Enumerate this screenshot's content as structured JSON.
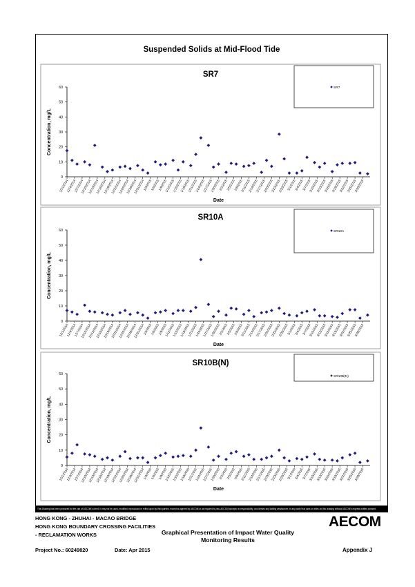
{
  "page": {
    "title": "Suspended Solids at Mid-Flood Tide",
    "disclaimer": "This Drawing has been prepared for the use of AECOM's client. It may not be used, modified, reproduced or relied upon by third parties, except as agreed by AECOM or as required by law. AECOM accepts no responsibility, and denies any liability whatsoever, to any party that uses or relies on this drawing without AECOM's express written consent.",
    "footer": {
      "line1": "HONG KONG - ZHUHAI - MACAO BRIDGE",
      "line2": "HONG KONG BOUNDARY CROSSING FACILITIES",
      "line3": "- RECLAMATION WORKS",
      "project": "Project No.: 60249820",
      "date": "Date: Apr 2015",
      "doc_title_1": "Graphical Presentation of Impact Water Quality",
      "doc_title_2": "Monitoring Results",
      "appendix": "Appendix J",
      "logo": "AECOM"
    }
  },
  "chart_data": [
    {
      "type": "scatter",
      "title": "SR7",
      "xlabel": "Date",
      "ylabel": "Concentration, mg/L",
      "ylim": [
        0,
        60
      ],
      "yticks": [
        0,
        10,
        20,
        30,
        40,
        50,
        60
      ],
      "xlim": [
        "2014-12-01",
        "2015-03-31"
      ],
      "xticks": [
        "12/1/2014",
        "12/4/2014",
        "12/7/2014",
        "12/10/2014",
        "12/13/2014",
        "12/16/2014",
        "12/19/2014",
        "12/22/2014",
        "12/25/2014",
        "12/28/2014",
        "12/31/2014",
        "1/3/2015",
        "1/6/2015",
        "1/9/2015",
        "1/12/2015",
        "1/15/2015",
        "1/18/2015",
        "1/21/2015",
        "1/24/2015",
        "1/27/2015",
        "1/30/2015",
        "2/2/2015",
        "2/5/2015",
        "2/8/2015",
        "2/11/2015",
        "2/14/2015",
        "2/17/2015",
        "2/20/2015",
        "2/23/2015",
        "2/26/2015",
        "3/1/2015",
        "3/4/2015",
        "3/7/2015",
        "3/10/2015",
        "3/13/2015",
        "3/16/2015",
        "3/19/2015",
        "3/22/2015",
        "3/25/2015",
        "3/28/2015"
      ],
      "legend": "top-right",
      "grid": false,
      "series": [
        {
          "name": "SR7",
          "color": "#1f1f7a",
          "points": [
            [
              "2014-12-01",
              17.5
            ],
            [
              "2014-12-03",
              11
            ],
            [
              "2014-12-05",
              8.5
            ],
            [
              "2014-12-08",
              10
            ],
            [
              "2014-12-10",
              8
            ],
            [
              "2014-12-12",
              21
            ],
            [
              "2014-12-15",
              6.5
            ],
            [
              "2014-12-17",
              3.5
            ],
            [
              "2014-12-19",
              4.5
            ],
            [
              "2014-12-22",
              6.5
            ],
            [
              "2014-12-24",
              7
            ],
            [
              "2014-12-26",
              5.5
            ],
            [
              "2014-12-29",
              7.5
            ],
            [
              "2014-12-31",
              4.5
            ],
            [
              "2015-01-02",
              2.5
            ],
            [
              "2015-01-05",
              10
            ],
            [
              "2015-01-07",
              8
            ],
            [
              "2015-01-09",
              8.5
            ],
            [
              "2015-01-12",
              11
            ],
            [
              "2015-01-14",
              4.5
            ],
            [
              "2015-01-16",
              10
            ],
            [
              "2015-01-19",
              7.5
            ],
            [
              "2015-01-21",
              15
            ],
            [
              "2015-01-23",
              26
            ],
            [
              "2015-01-26",
              21
            ],
            [
              "2015-01-28",
              6.5
            ],
            [
              "2015-01-30",
              8.5
            ],
            [
              "2015-02-02",
              3
            ],
            [
              "2015-02-04",
              9
            ],
            [
              "2015-02-06",
              8.5
            ],
            [
              "2015-02-09",
              7
            ],
            [
              "2015-02-11",
              7.5
            ],
            [
              "2015-02-13",
              9
            ],
            [
              "2015-02-16",
              3
            ],
            [
              "2015-02-18",
              11
            ],
            [
              "2015-02-20",
              7
            ],
            [
              "2015-02-23",
              28.5
            ],
            [
              "2015-02-25",
              12
            ],
            [
              "2015-02-27",
              2.5
            ],
            [
              "2015-03-02",
              2.5
            ],
            [
              "2015-03-04",
              4
            ],
            [
              "2015-03-06",
              13
            ],
            [
              "2015-03-09",
              9.5
            ],
            [
              "2015-03-11",
              6.5
            ],
            [
              "2015-03-13",
              9
            ],
            [
              "2015-03-16",
              3.5
            ],
            [
              "2015-03-18",
              8
            ],
            [
              "2015-03-20",
              9
            ],
            [
              "2015-03-23",
              9
            ],
            [
              "2015-03-25",
              9.5
            ],
            [
              "2015-03-27",
              2.5
            ],
            [
              "2015-03-30",
              2
            ]
          ]
        }
      ]
    },
    {
      "type": "scatter",
      "title": "SR10A",
      "xlabel": "Date",
      "ylabel": "Concentration, mg/L",
      "ylim": [
        0,
        60
      ],
      "yticks": [
        0,
        10,
        20,
        30,
        40,
        50,
        60
      ],
      "xlim": [
        "2014-12-01",
        "2015-03-31"
      ],
      "xticks": [
        "12/1/2014",
        "12/4/2014",
        "12/7/2014",
        "12/10/2014",
        "12/13/2014",
        "12/16/2014",
        "12/19/2014",
        "12/22/2014",
        "12/25/2014",
        "12/28/2014",
        "12/31/2014",
        "1/3/2015",
        "1/6/2015",
        "1/9/2015",
        "1/12/2015",
        "1/15/2015",
        "1/18/2015",
        "1/21/2015",
        "1/24/2015",
        "1/27/2015",
        "1/30/2015",
        "2/2/2015",
        "2/5/2015",
        "2/8/2015",
        "2/11/2015",
        "2/14/2015",
        "2/17/2015",
        "2/20/2015",
        "2/23/2015",
        "2/26/2015",
        "3/1/2015",
        "3/4/2015",
        "3/7/2015",
        "3/10/2015",
        "3/13/2015",
        "3/16/2015",
        "3/19/2015",
        "3/22/2015",
        "3/25/2015",
        "3/28/2015"
      ],
      "legend": "top-right",
      "grid": false,
      "series": [
        {
          "name": "SR10A",
          "color": "#1f1f7a",
          "points": [
            [
              "2014-12-01",
              7
            ],
            [
              "2014-12-03",
              6
            ],
            [
              "2014-12-05",
              4.5
            ],
            [
              "2014-12-08",
              10.5
            ],
            [
              "2014-12-10",
              6.5
            ],
            [
              "2014-12-12",
              6
            ],
            [
              "2014-12-15",
              5.5
            ],
            [
              "2014-12-17",
              4.5
            ],
            [
              "2014-12-19",
              4
            ],
            [
              "2014-12-22",
              5.5
            ],
            [
              "2014-12-24",
              7
            ],
            [
              "2014-12-26",
              4.5
            ],
            [
              "2014-12-29",
              5.5
            ],
            [
              "2014-12-31",
              4
            ],
            [
              "2015-01-02",
              2
            ],
            [
              "2015-01-05",
              5.5
            ],
            [
              "2015-01-07",
              6
            ],
            [
              "2015-01-09",
              7
            ],
            [
              "2015-01-12",
              5
            ],
            [
              "2015-01-14",
              7
            ],
            [
              "2015-01-16",
              7
            ],
            [
              "2015-01-19",
              6.5
            ],
            [
              "2015-01-21",
              9
            ],
            [
              "2015-01-23",
              40.5
            ],
            [
              "2015-01-26",
              11
            ],
            [
              "2015-01-28",
              3
            ],
            [
              "2015-01-30",
              6.5
            ],
            [
              "2015-02-02",
              4
            ],
            [
              "2015-02-04",
              8.5
            ],
            [
              "2015-02-06",
              8
            ],
            [
              "2015-02-09",
              4.5
            ],
            [
              "2015-02-11",
              7
            ],
            [
              "2015-02-13",
              3
            ],
            [
              "2015-02-16",
              5.5
            ],
            [
              "2015-02-18",
              6
            ],
            [
              "2015-02-20",
              7
            ],
            [
              "2015-02-23",
              8.5
            ],
            [
              "2015-02-25",
              5
            ],
            [
              "2015-02-27",
              4
            ],
            [
              "2015-03-02",
              3.5
            ],
            [
              "2015-03-04",
              5.5
            ],
            [
              "2015-03-06",
              6.5
            ],
            [
              "2015-03-09",
              7.5
            ],
            [
              "2015-03-11",
              3.5
            ],
            [
              "2015-03-13",
              3.5
            ],
            [
              "2015-03-16",
              3
            ],
            [
              "2015-03-18",
              2.5
            ],
            [
              "2015-03-20",
              5
            ],
            [
              "2015-03-23",
              7.5
            ],
            [
              "2015-03-25",
              7.5
            ],
            [
              "2015-03-27",
              2
            ],
            [
              "2015-03-30",
              4
            ]
          ]
        }
      ]
    },
    {
      "type": "scatter",
      "title": "SR10B(N)",
      "xlabel": "Date",
      "ylabel": "Concentration, mg/L",
      "ylim": [
        0,
        60
      ],
      "yticks": [
        0,
        10,
        20,
        30,
        40,
        50,
        60
      ],
      "xlim": [
        "2014-12-01",
        "2015-03-31"
      ],
      "xticks": [
        "12/1/2014",
        "12/4/2014",
        "12/7/2014",
        "12/10/2014",
        "12/13/2014",
        "12/16/2014",
        "12/19/2014",
        "12/22/2014",
        "12/25/2014",
        "12/28/2014",
        "12/31/2014",
        "1/3/2015",
        "1/6/2015",
        "1/9/2015",
        "1/12/2015",
        "1/15/2015",
        "1/18/2015",
        "1/21/2015",
        "1/24/2015",
        "1/27/2015",
        "1/30/2015",
        "2/2/2015",
        "2/5/2015",
        "2/8/2015",
        "2/11/2015",
        "2/14/2015",
        "2/17/2015",
        "2/20/2015",
        "2/23/2015",
        "2/26/2015",
        "3/1/2015",
        "3/4/2015",
        "3/7/2015",
        "3/10/2015",
        "3/13/2015",
        "3/16/2015",
        "3/19/2015",
        "3/22/2015",
        "3/25/2015",
        "3/28/2015"
      ],
      "legend": "top-right",
      "grid": false,
      "series": [
        {
          "name": "SR10B(N)",
          "color": "#1f1f7a",
          "points": [
            [
              "2014-12-01",
              5.5
            ],
            [
              "2014-12-03",
              8
            ],
            [
              "2014-12-05",
              13.5
            ],
            [
              "2014-12-08",
              7.5
            ],
            [
              "2014-12-10",
              7
            ],
            [
              "2014-12-12",
              6
            ],
            [
              "2014-12-15",
              4
            ],
            [
              "2014-12-17",
              5
            ],
            [
              "2014-12-19",
              3.5
            ],
            [
              "2014-12-22",
              6
            ],
            [
              "2014-12-24",
              9
            ],
            [
              "2014-12-26",
              4.5
            ],
            [
              "2014-12-29",
              5
            ],
            [
              "2014-12-31",
              5
            ],
            [
              "2015-01-02",
              2
            ],
            [
              "2015-01-05",
              5
            ],
            [
              "2015-01-07",
              6.5
            ],
            [
              "2015-01-09",
              8
            ],
            [
              "2015-01-12",
              5.5
            ],
            [
              "2015-01-14",
              6
            ],
            [
              "2015-01-16",
              6.5
            ],
            [
              "2015-01-19",
              6
            ],
            [
              "2015-01-21",
              10
            ],
            [
              "2015-01-23",
              24.5
            ],
            [
              "2015-01-26",
              12
            ],
            [
              "2015-01-28",
              3.5
            ],
            [
              "2015-01-30",
              6
            ],
            [
              "2015-02-02",
              4
            ],
            [
              "2015-02-04",
              8
            ],
            [
              "2015-02-06",
              9
            ],
            [
              "2015-02-09",
              6
            ],
            [
              "2015-02-11",
              7
            ],
            [
              "2015-02-13",
              4
            ],
            [
              "2015-02-16",
              4
            ],
            [
              "2015-02-18",
              5
            ],
            [
              "2015-02-20",
              6
            ],
            [
              "2015-02-23",
              10
            ],
            [
              "2015-02-25",
              5
            ],
            [
              "2015-02-27",
              3
            ],
            [
              "2015-03-02",
              4.5
            ],
            [
              "2015-03-04",
              4
            ],
            [
              "2015-03-06",
              5.5
            ],
            [
              "2015-03-09",
              7.5
            ],
            [
              "2015-03-11",
              4
            ],
            [
              "2015-03-13",
              3.5
            ],
            [
              "2015-03-16",
              3.5
            ],
            [
              "2015-03-18",
              3
            ],
            [
              "2015-03-20",
              5
            ],
            [
              "2015-03-23",
              7
            ],
            [
              "2015-03-25",
              8
            ],
            [
              "2015-03-27",
              2
            ],
            [
              "2015-03-30",
              3
            ]
          ]
        }
      ]
    }
  ]
}
